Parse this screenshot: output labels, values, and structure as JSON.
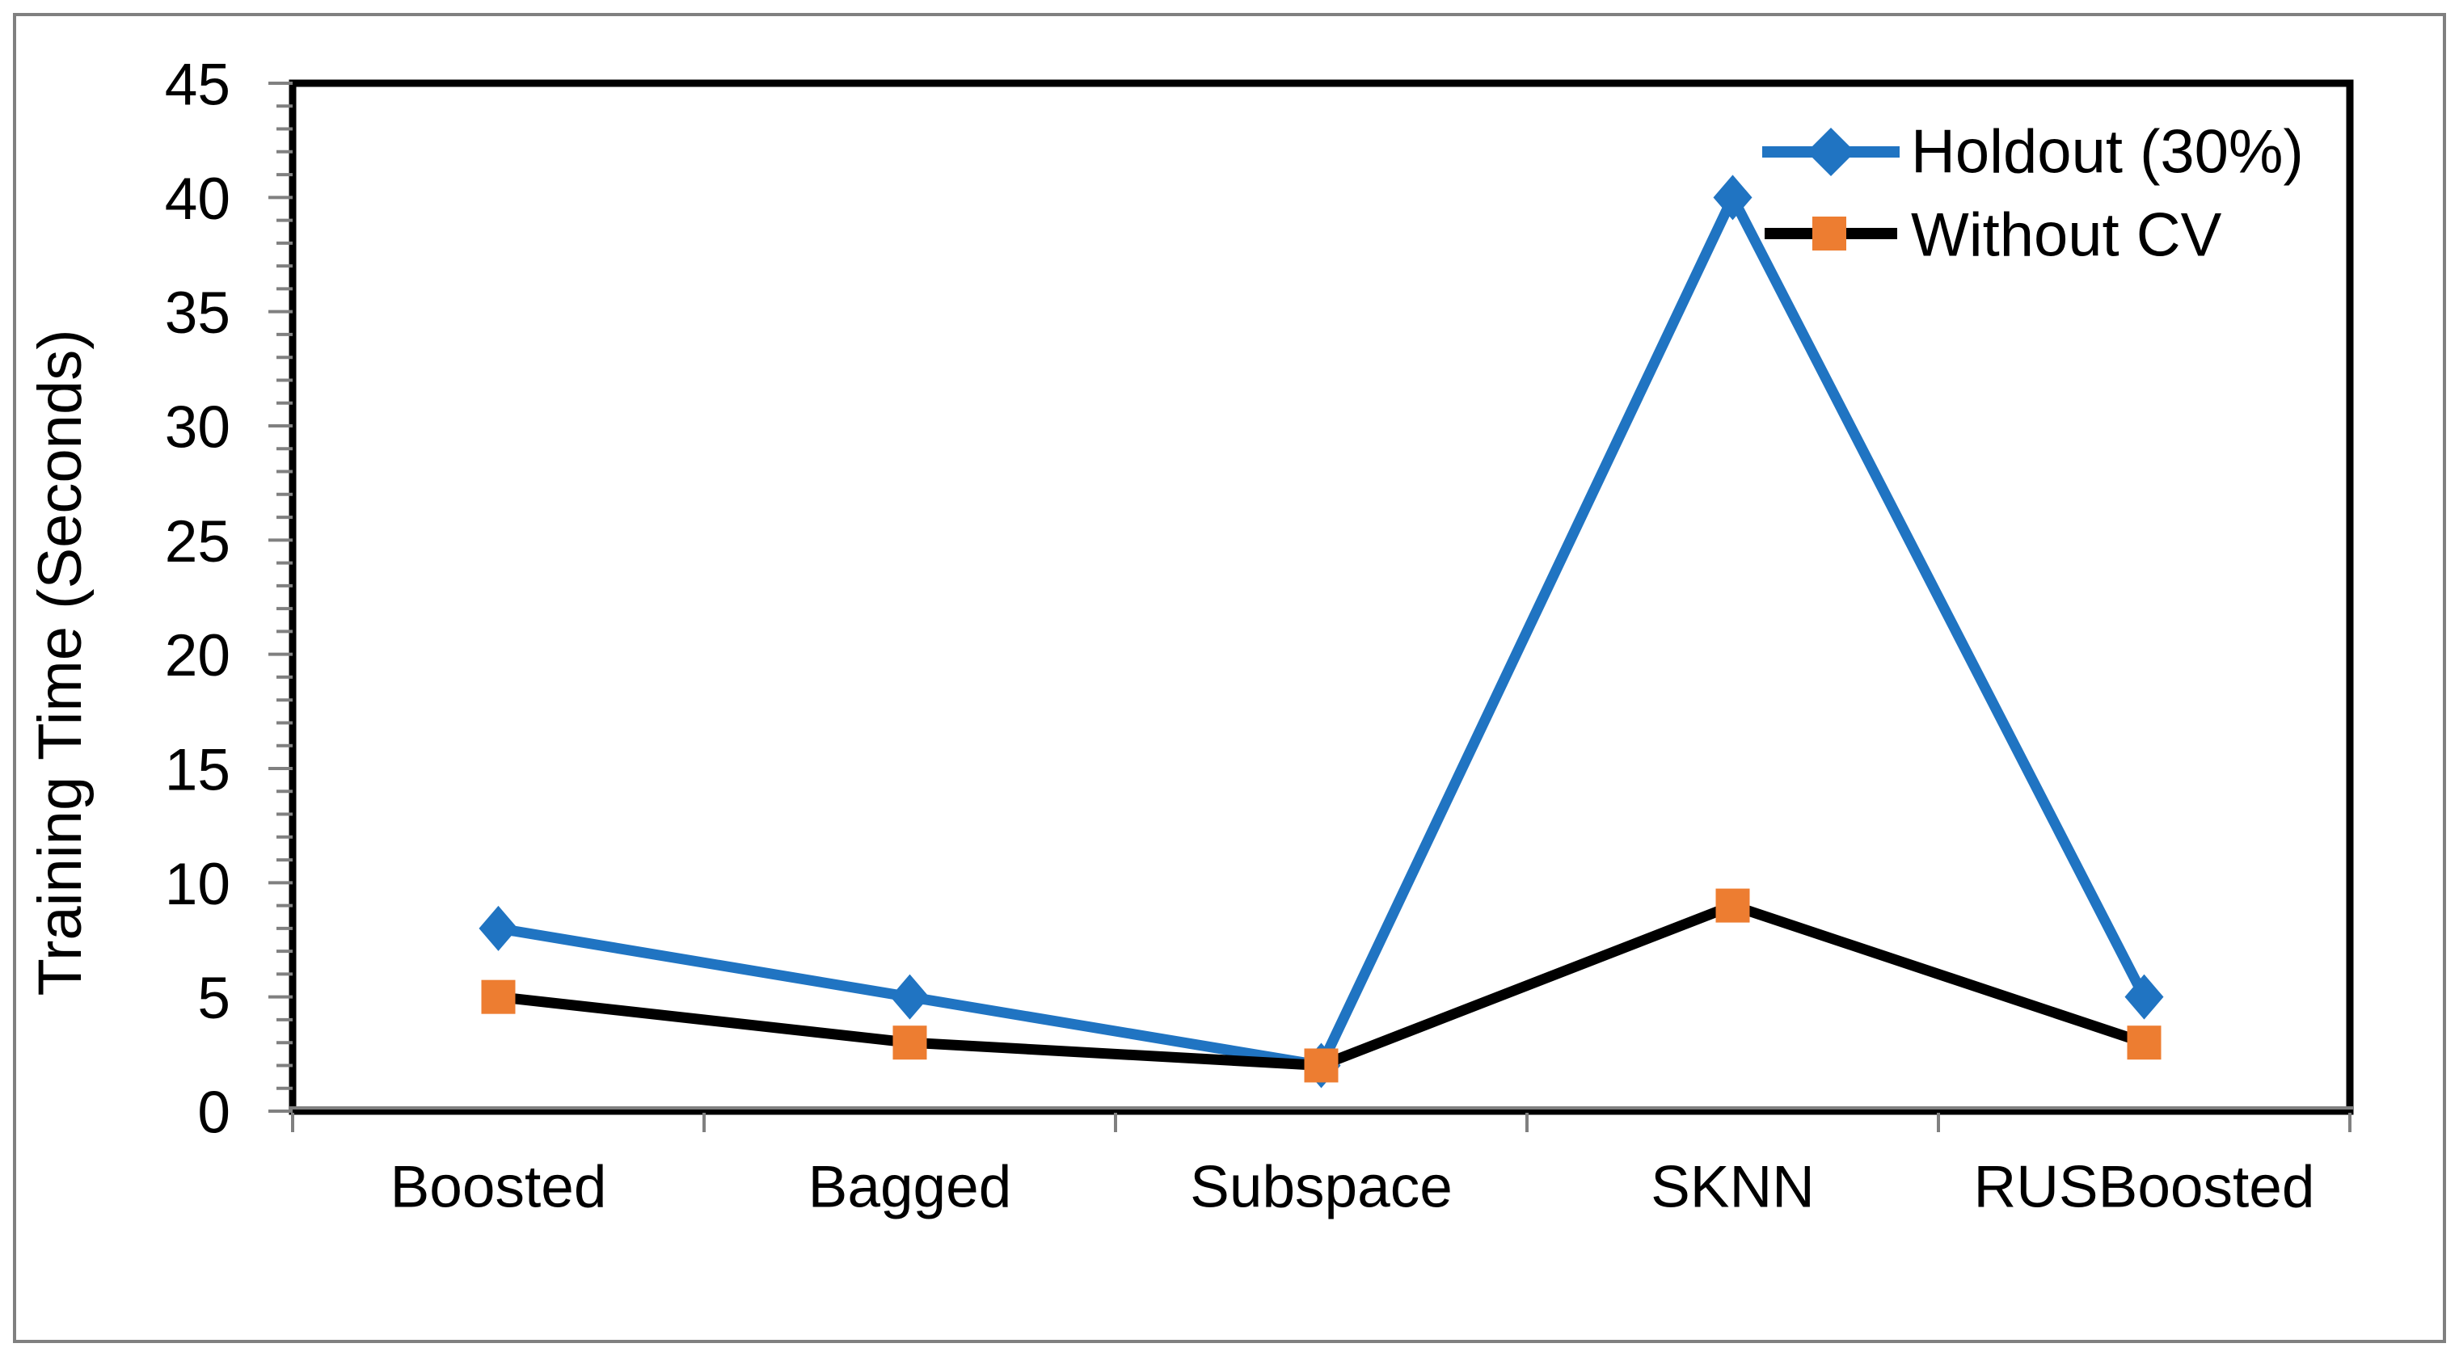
{
  "chart_data": {
    "type": "line",
    "title": "",
    "categories": [
      "Boosted",
      "Bagged",
      "Subspace",
      "SKNN",
      "RUSBoosted"
    ],
    "series": [
      {
        "name": "Holdout (30%)",
        "values": [
          8,
          5,
          2,
          40,
          5
        ],
        "line_color": "#2074C2",
        "marker": "diamond",
        "marker_color": "#2074C2"
      },
      {
        "name": "Without CV",
        "values": [
          5,
          3,
          2,
          9,
          3
        ],
        "line_color": "#000000",
        "marker": "square",
        "marker_color": "#ED7D31"
      }
    ],
    "xlabel": "",
    "ylabel": "Training Time (Seconds)",
    "ylim": [
      0,
      45
    ],
    "y_major_step": 5,
    "y_minor_step": 1,
    "y_tick_labels": [
      "0",
      "5",
      "10",
      "15",
      "20",
      "25",
      "30",
      "35",
      "40",
      "45"
    ],
    "grid": false,
    "legend_position": "top-right-inside",
    "axis_tick_color": "#808080",
    "plot_border_color": "#000000",
    "outer_border_color": "#808080",
    "background_color": "#ffffff"
  }
}
